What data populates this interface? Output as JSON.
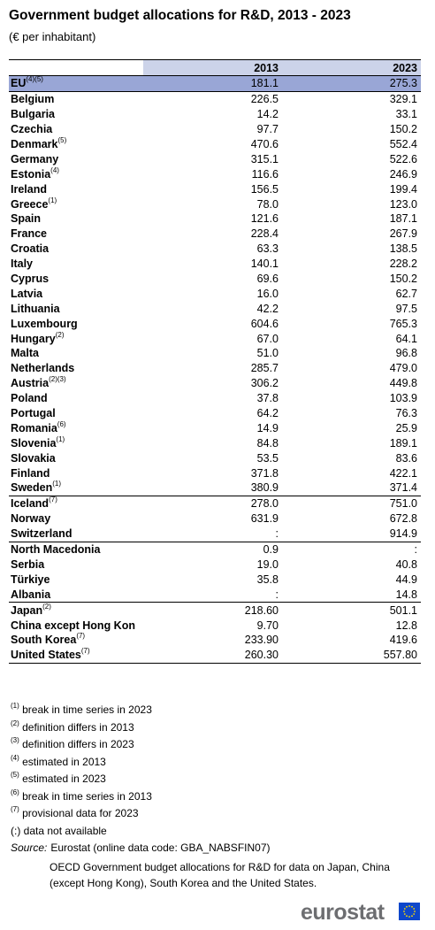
{
  "title": "Government budget allocations for R&D, 2013 - 2023",
  "subtitle": "(€ per inhabitant)",
  "columns": [
    "2013",
    "2023"
  ],
  "rows": [
    {
      "country": "EU",
      "note": "(4)(5)",
      "y2013": "181.1",
      "y2023": "275.3"
    },
    {
      "country": "Belgium",
      "note": "",
      "y2013": "226.5",
      "y2023": "329.1"
    },
    {
      "country": "Bulgaria",
      "note": "",
      "y2013": "14.2",
      "y2023": "33.1"
    },
    {
      "country": "Czechia",
      "note": "",
      "y2013": "97.7",
      "y2023": "150.2"
    },
    {
      "country": "Denmark",
      "note": "(5)",
      "y2013": "470.6",
      "y2023": "552.4"
    },
    {
      "country": "Germany",
      "note": "",
      "y2013": "315.1",
      "y2023": "522.6"
    },
    {
      "country": "Estonia",
      "note": "(4)",
      "y2013": "116.6",
      "y2023": "246.9"
    },
    {
      "country": "Ireland",
      "note": "",
      "y2013": "156.5",
      "y2023": "199.4"
    },
    {
      "country": "Greece",
      "note": "(1)",
      "y2013": "78.0",
      "y2023": "123.0"
    },
    {
      "country": "Spain",
      "note": "",
      "y2013": "121.6",
      "y2023": "187.1"
    },
    {
      "country": "France",
      "note": "",
      "y2013": "228.4",
      "y2023": "267.9"
    },
    {
      "country": "Croatia",
      "note": "",
      "y2013": "63.3",
      "y2023": "138.5"
    },
    {
      "country": "Italy",
      "note": "",
      "y2013": "140.1",
      "y2023": "228.2"
    },
    {
      "country": "Cyprus",
      "note": "",
      "y2013": "69.6",
      "y2023": "150.2"
    },
    {
      "country": "Latvia",
      "note": "",
      "y2013": "16.0",
      "y2023": "62.7"
    },
    {
      "country": "Lithuania",
      "note": "",
      "y2013": "42.2",
      "y2023": "97.5"
    },
    {
      "country": "Luxembourg",
      "note": "",
      "y2013": "604.6",
      "y2023": "765.3"
    },
    {
      "country": "Hungary",
      "note": "(2)",
      "y2013": "67.0",
      "y2023": "64.1"
    },
    {
      "country": "Malta",
      "note": "",
      "y2013": "51.0",
      "y2023": "96.8"
    },
    {
      "country": "Netherlands",
      "note": "",
      "y2013": "285.7",
      "y2023": "479.0"
    },
    {
      "country": "Austria",
      "note": "(2)(3)",
      "y2013": "306.2",
      "y2023": "449.8"
    },
    {
      "country": "Poland",
      "note": "",
      "y2013": "37.8",
      "y2023": "103.9"
    },
    {
      "country": "Portugal",
      "note": "",
      "y2013": "64.2",
      "y2023": "76.3"
    },
    {
      "country": "Romania",
      "note": "(6)",
      "y2013": "14.9",
      "y2023": "25.9"
    },
    {
      "country": "Slovenia",
      "note": "(1)",
      "y2013": "84.8",
      "y2023": "189.1"
    },
    {
      "country": "Slovakia",
      "note": "",
      "y2013": "53.5",
      "y2023": "83.6"
    },
    {
      "country": "Finland",
      "note": "",
      "y2013": "371.8",
      "y2023": "422.1"
    },
    {
      "country": "Sweden",
      "note": "(1)",
      "y2013": "380.9",
      "y2023": "371.4"
    },
    {
      "country": "Iceland",
      "note": "(7)",
      "y2013": "278.0",
      "y2023": "751.0"
    },
    {
      "country": "Norway",
      "note": "",
      "y2013": "631.9",
      "y2023": "672.8"
    },
    {
      "country": "Switzerland",
      "note": "",
      "y2013": ":",
      "y2023": "914.9"
    },
    {
      "country": "North Macedonia",
      "note": "",
      "y2013": "0.9",
      "y2023": ":"
    },
    {
      "country": "Serbia",
      "note": "",
      "y2013": "19.0",
      "y2023": "40.8"
    },
    {
      "country": "Türkiye",
      "note": "",
      "y2013": "35.8",
      "y2023": "44.9"
    },
    {
      "country": "Albania",
      "note": "",
      "y2013": ":",
      "y2023": "14.8"
    },
    {
      "country": "Japan",
      "note": "(2)",
      "y2013": "218.60",
      "y2023": "501.1"
    },
    {
      "country": "China except Hong Kon",
      "note": "",
      "y2013": "9.70",
      "y2023": "12.8"
    },
    {
      "country": "South Korea",
      "note": "(7)",
      "y2013": "233.90",
      "y2023": "419.6"
    },
    {
      "country": "United States",
      "note": "(7)",
      "y2013": "260.30",
      "y2023": "557.80"
    }
  ],
  "footnotes": [
    {
      "mark": "(1)",
      "text": "break in time series in 2023"
    },
    {
      "mark": "(2)",
      "text": "definition differs in 2013"
    },
    {
      "mark": "(3)",
      "text": "definition differs in 2023"
    },
    {
      "mark": "(4)",
      "text": "estimated in 2013"
    },
    {
      "mark": "(5)",
      "text": "estimated in 2023"
    },
    {
      "mark": "(6)",
      "text": "break in time series in 2013"
    },
    {
      "mark": "(7)",
      "text": "provisional data for 2023"
    }
  ],
  "na_note": "(:) data not available",
  "source_label": "Source:",
  "source_text": "Eurostat (online data code: GBA_NABSFIN07)",
  "source_text2": "OECD Government budget allocations for R&D for data on Japan, China (except Hong Kong), South Korea and the United States.",
  "logo_text": "eurostat"
}
